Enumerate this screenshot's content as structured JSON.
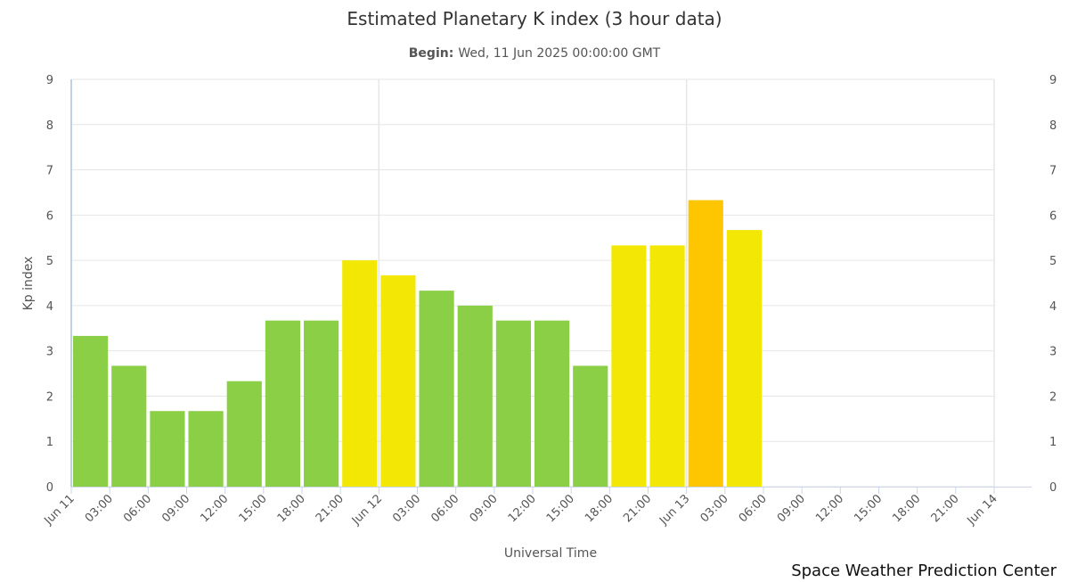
{
  "chart_data": {
    "type": "bar",
    "title": "Estimated Planetary K index (3 hour data)",
    "subtitle": {
      "label": "Begin:",
      "value": "Wed, 11 Jun 2025 00:00:00 GMT"
    },
    "xlabel": "Universal Time",
    "ylabel": "Kp index",
    "ylim": [
      0,
      9
    ],
    "yticks": [
      "0",
      "1",
      "2",
      "3",
      "4",
      "5",
      "6",
      "7",
      "8",
      "9"
    ],
    "x_ticks": [
      "Jun 11",
      "03:00",
      "06:00",
      "09:00",
      "12:00",
      "15:00",
      "18:00",
      "21:00",
      "Jun 12",
      "03:00",
      "06:00",
      "09:00",
      "12:00",
      "15:00",
      "18:00",
      "21:00",
      "Jun 13",
      "03:00",
      "06:00",
      "09:00",
      "12:00",
      "15:00",
      "18:00",
      "21:00",
      "Jun 14"
    ],
    "values": [
      3.33,
      2.67,
      1.67,
      1.67,
      2.33,
      3.67,
      3.67,
      5.0,
      4.67,
      4.33,
      4.0,
      3.67,
      3.67,
      2.67,
      5.33,
      5.33,
      6.33,
      5.67
    ],
    "colors": {
      "green": "#8acf45",
      "yellow": "#f3e805",
      "orange": "#fec600"
    },
    "grid": true,
    "credit": "Space Weather Prediction Center"
  }
}
